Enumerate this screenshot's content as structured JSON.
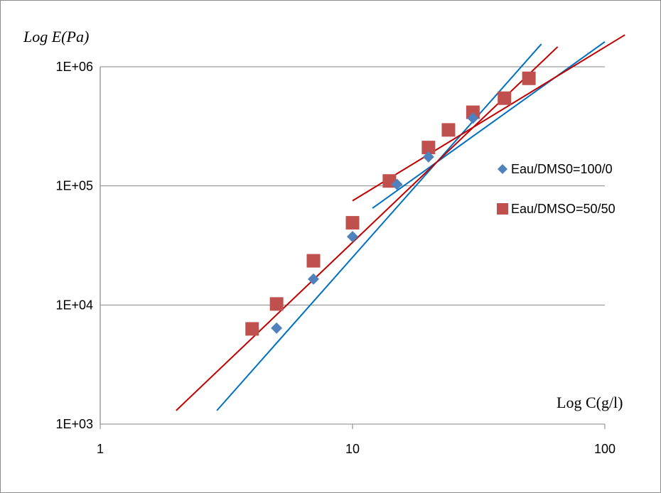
{
  "chart_data": {
    "type": "scatter",
    "xscale": "log",
    "yscale": "log",
    "xlim": [
      1,
      100
    ],
    "ylim": [
      1000,
      1000000
    ],
    "x_ticks": [
      "1",
      "10",
      "100"
    ],
    "y_ticks": [
      "1E+03",
      "1E+04",
      "1E+05",
      "1E+06"
    ],
    "ylabel": "Log  E(Pa)",
    "xlabel": "Log C(g/l)",
    "grid": "horizontal",
    "legend_position": "right",
    "series": [
      {
        "name": "Eau/DMS0=100/0",
        "marker": "diamond",
        "color": "#4f81bd",
        "points": [
          {
            "x": 5,
            "y": 6400
          },
          {
            "x": 7,
            "y": 16500
          },
          {
            "x": 10,
            "y": 37500
          },
          {
            "x": 15,
            "y": 103000
          },
          {
            "x": 20,
            "y": 175000
          },
          {
            "x": 30,
            "y": 370000
          }
        ]
      },
      {
        "name": "Eau/DMSO=50/50",
        "marker": "square",
        "color": "#c0504d",
        "points": [
          {
            "x": 4,
            "y": 6300
          },
          {
            "x": 5,
            "y": 10200
          },
          {
            "x": 7,
            "y": 23500
          },
          {
            "x": 10,
            "y": 49000
          },
          {
            "x": 14,
            "y": 110000
          },
          {
            "x": 20,
            "y": 210000
          },
          {
            "x": 24,
            "y": 295000
          },
          {
            "x": 30,
            "y": 415000
          },
          {
            "x": 40,
            "y": 545000
          },
          {
            "x": 50,
            "y": 800000
          }
        ]
      }
    ],
    "fit_lines": [
      {
        "color": "#0070c0",
        "from": [
          2.9,
          1300
        ],
        "to": [
          56,
          1550000
        ]
      },
      {
        "color": "#0070c0",
        "from": [
          12,
          65000
        ],
        "to": [
          100,
          1620000
        ]
      },
      {
        "color": "#c00000",
        "from": [
          2,
          1300
        ],
        "to": [
          65,
          1470000
        ]
      },
      {
        "color": "#c00000",
        "from": [
          10,
          75000
        ],
        "to": [
          120,
          1850000
        ]
      }
    ]
  }
}
